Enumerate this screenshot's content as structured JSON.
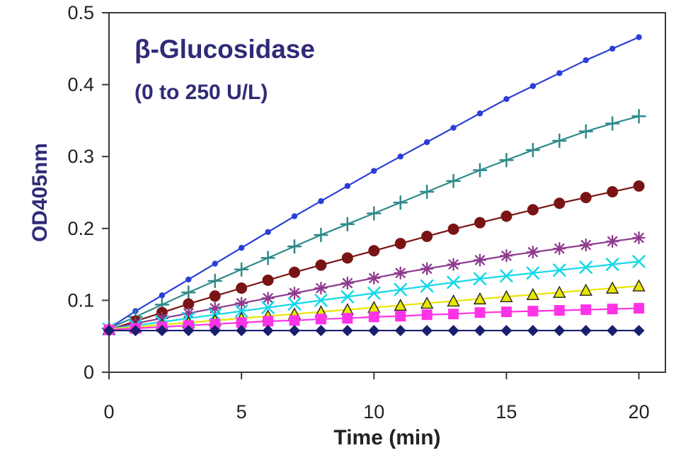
{
  "chart_data": {
    "type": "line",
    "title": "β-Glucosidase",
    "subtitle": "(0 to 250 U/L)",
    "xlabel": "Time (min)",
    "ylabel": "OD405nm",
    "xlim": [
      0,
      21
    ],
    "ylim": [
      0,
      0.5
    ],
    "x_ticks": [
      0,
      5,
      10,
      15,
      20
    ],
    "y_ticks": [
      0,
      0.1,
      0.2,
      0.3,
      0.4,
      0.5
    ],
    "x_tick_labels": [
      "0",
      "5",
      "10",
      "15",
      "20"
    ],
    "y_tick_labels": [
      "0",
      "0.1",
      "0.2",
      "0.3",
      "0.4",
      "0.5"
    ],
    "grid": false,
    "legend": "none",
    "x": [
      0,
      1,
      2,
      3,
      4,
      5,
      6,
      7,
      8,
      9,
      10,
      11,
      12,
      13,
      14,
      15,
      16,
      17,
      18,
      19,
      20
    ],
    "series": [
      {
        "color": "#2a3fd8",
        "marker": "small-dot",
        "values": [
          0.061,
          0.085,
          0.107,
          0.129,
          0.151,
          0.173,
          0.195,
          0.217,
          0.238,
          0.259,
          0.28,
          0.3,
          0.32,
          0.34,
          0.36,
          0.38,
          0.398,
          0.416,
          0.434,
          0.45,
          0.466
        ]
      },
      {
        "color": "#2f8a8a",
        "marker": "plus",
        "values": [
          0.061,
          0.077,
          0.094,
          0.111,
          0.127,
          0.143,
          0.159,
          0.175,
          0.191,
          0.206,
          0.221,
          0.236,
          0.251,
          0.266,
          0.281,
          0.295,
          0.309,
          0.322,
          0.335,
          0.346,
          0.356
        ]
      },
      {
        "color": "#7a1414",
        "marker": "circle",
        "values": [
          0.059,
          0.071,
          0.083,
          0.095,
          0.106,
          0.117,
          0.128,
          0.139,
          0.149,
          0.159,
          0.169,
          0.179,
          0.189,
          0.199,
          0.208,
          0.217,
          0.226,
          0.235,
          0.243,
          0.251,
          0.259
        ]
      },
      {
        "color": "#8e3a8e",
        "marker": "asterisk",
        "values": [
          0.06,
          0.068,
          0.075,
          0.082,
          0.089,
          0.096,
          0.103,
          0.11,
          0.117,
          0.124,
          0.131,
          0.138,
          0.144,
          0.15,
          0.156,
          0.162,
          0.167,
          0.172,
          0.177,
          0.182,
          0.187
        ]
      },
      {
        "color": "#12d8e8",
        "marker": "x",
        "values": [
          0.06,
          0.065,
          0.07,
          0.075,
          0.08,
          0.085,
          0.09,
          0.095,
          0.1,
          0.105,
          0.11,
          0.115,
          0.12,
          0.125,
          0.13,
          0.134,
          0.138,
          0.142,
          0.146,
          0.15,
          0.154
        ]
      },
      {
        "color": "#e9e600",
        "marker": "triangle",
        "values": [
          0.06,
          0.063,
          0.066,
          0.069,
          0.072,
          0.075,
          0.078,
          0.081,
          0.084,
          0.087,
          0.09,
          0.093,
          0.096,
          0.099,
          0.102,
          0.105,
          0.108,
          0.111,
          0.114,
          0.117,
          0.12
        ]
      },
      {
        "color": "#ff33e6",
        "marker": "square",
        "values": [
          0.059,
          0.061,
          0.063,
          0.065,
          0.067,
          0.069,
          0.071,
          0.072,
          0.074,
          0.075,
          0.077,
          0.078,
          0.08,
          0.081,
          0.083,
          0.084,
          0.085,
          0.086,
          0.087,
          0.088,
          0.089
        ]
      },
      {
        "color": "#18206d",
        "marker": "diamond",
        "values": [
          0.058,
          0.058,
          0.058,
          0.058,
          0.058,
          0.058,
          0.058,
          0.058,
          0.058,
          0.058,
          0.058,
          0.058,
          0.058,
          0.058,
          0.058,
          0.058,
          0.058,
          0.058,
          0.058,
          0.058,
          0.058
        ]
      }
    ]
  }
}
